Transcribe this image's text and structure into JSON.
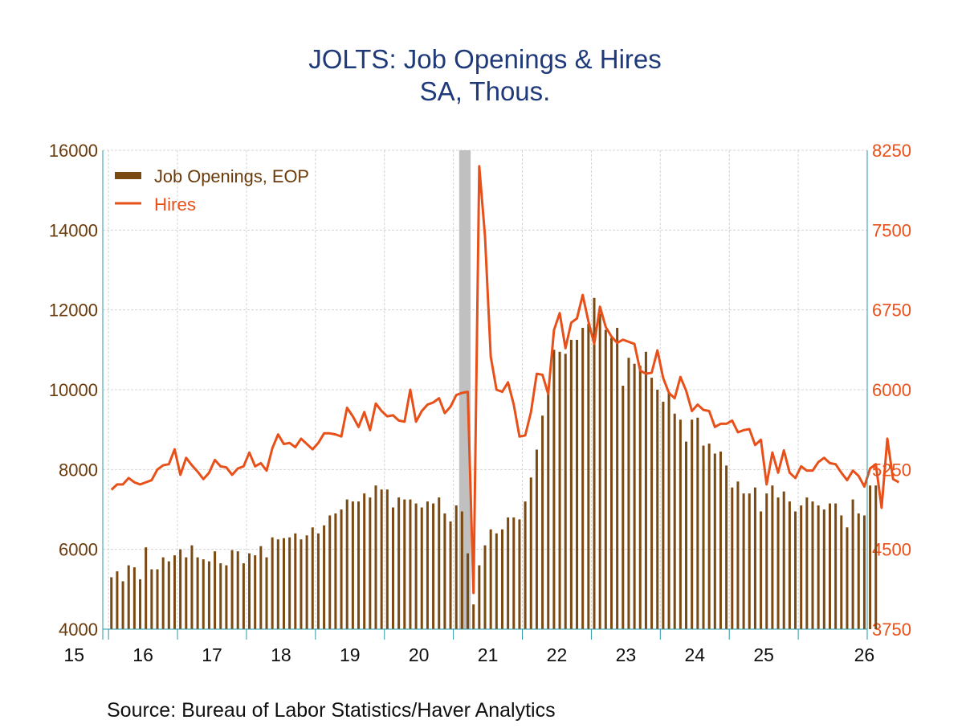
{
  "chart_data": {
    "type": "bar",
    "title": "JOLTS: Job Openings & Hires",
    "subtitle": "SA, Thous.",
    "source": "Source:  Bureau of Labor Statistics/Haver Analytics",
    "x_tick_labels": [
      "15",
      "16",
      "17",
      "18",
      "19",
      "20",
      "21",
      "22",
      "23",
      "24",
      "25",
      "26"
    ],
    "left_axis": {
      "ylim": [
        4000,
        16000
      ],
      "ticks": [
        "4000",
        "6000",
        "8000",
        "10000",
        "12000",
        "14000",
        "16000"
      ]
    },
    "right_axis": {
      "ylim": [
        3750,
        8250
      ],
      "ticks": [
        "3750",
        "4500",
        "5250",
        "6000",
        "6750",
        "7500",
        "8250"
      ]
    },
    "x_range": [
      "2014-12",
      "2026-01"
    ],
    "recession_shading": {
      "start": "2020-02",
      "end": "2020-04"
    },
    "grid": true,
    "legend_position": "top-left",
    "colors": {
      "openings": "#7a4a12",
      "hires": "#e8501a",
      "left_text": "#6b3a0a",
      "right_text": "#e8501a",
      "title": "#1f3a7a",
      "axis": "#2a9aa8",
      "recession": "#c0c0c0"
    },
    "series": [
      {
        "name": "Job Openings, EOP",
        "axis": "left",
        "kind": "bar",
        "start": "2015-01",
        "values": [
          5300,
          5450,
          5200,
          5600,
          5550,
          5250,
          6050,
          5500,
          5500,
          5800,
          5700,
          5850,
          6000,
          5800,
          6100,
          5800,
          5750,
          5700,
          5950,
          5650,
          5600,
          5980,
          5950,
          5650,
          5900,
          5850,
          6080,
          5800,
          6300,
          6250,
          6280,
          6300,
          6400,
          6250,
          6350,
          6550,
          6400,
          6600,
          6850,
          6900,
          7000,
          7250,
          7200,
          7200,
          7400,
          7300,
          7600,
          7500,
          7500,
          7050,
          7300,
          7250,
          7250,
          7150,
          7050,
          7200,
          7150,
          7300,
          6900,
          6700,
          7100,
          6950,
          5900,
          4620,
          5600,
          6100,
          6500,
          6400,
          6500,
          6800,
          6800,
          6750,
          7200,
          7800,
          8500,
          9350,
          10000,
          11000,
          10950,
          10900,
          11250,
          11250,
          11550,
          11650,
          12300,
          11900,
          11500,
          11300,
          11550,
          10100,
          10800,
          10650,
          10600,
          10950,
          10300,
          10000,
          9700,
          9950,
          9400,
          9250,
          8700,
          9250,
          9300,
          8600,
          8650,
          8400,
          8450,
          8100,
          7550,
          7700,
          7400,
          7400,
          7550,
          6950,
          7400,
          7600,
          7300,
          7450,
          7200,
          6950,
          7100,
          7300,
          7200,
          7100,
          7000,
          7150,
          7150,
          6850,
          6550,
          7250,
          6900,
          6850,
          7600,
          7600
        ]
      },
      {
        "name": "Hires",
        "axis": "right",
        "kind": "line",
        "start": "2015-01",
        "values": [
          5060,
          5110,
          5110,
          5170,
          5130,
          5110,
          5130,
          5150,
          5250,
          5290,
          5300,
          5440,
          5200,
          5360,
          5290,
          5230,
          5160,
          5220,
          5340,
          5280,
          5270,
          5200,
          5260,
          5280,
          5410,
          5280,
          5310,
          5240,
          5450,
          5580,
          5490,
          5500,
          5460,
          5540,
          5490,
          5440,
          5500,
          5590,
          5590,
          5580,
          5560,
          5830,
          5750,
          5650,
          5790,
          5620,
          5870,
          5800,
          5750,
          5760,
          5710,
          5700,
          6000,
          5700,
          5800,
          5860,
          5880,
          5920,
          5780,
          5840,
          5950,
          5970,
          5980,
          4090,
          8100,
          7440,
          6310,
          6000,
          5980,
          6070,
          5860,
          5560,
          5570,
          5790,
          6150,
          6140,
          5960,
          6560,
          6720,
          6390,
          6630,
          6670,
          6890,
          6640,
          6430,
          6780,
          6590,
          6500,
          6440,
          6470,
          6450,
          6430,
          6180,
          6150,
          6160,
          6370,
          6110,
          5970,
          5920,
          6120,
          5990,
          5800,
          5860,
          5810,
          5800,
          5650,
          5680,
          5680,
          5710,
          5600,
          5620,
          5630,
          5480,
          5530,
          5110,
          5410,
          5220,
          5430,
          5220,
          5170,
          5280,
          5240,
          5240,
          5320,
          5360,
          5310,
          5300,
          5220,
          5150,
          5240,
          5190,
          5090,
          5260,
          5300,
          4890,
          5540,
          5160,
          5130
        ]
      }
    ]
  }
}
